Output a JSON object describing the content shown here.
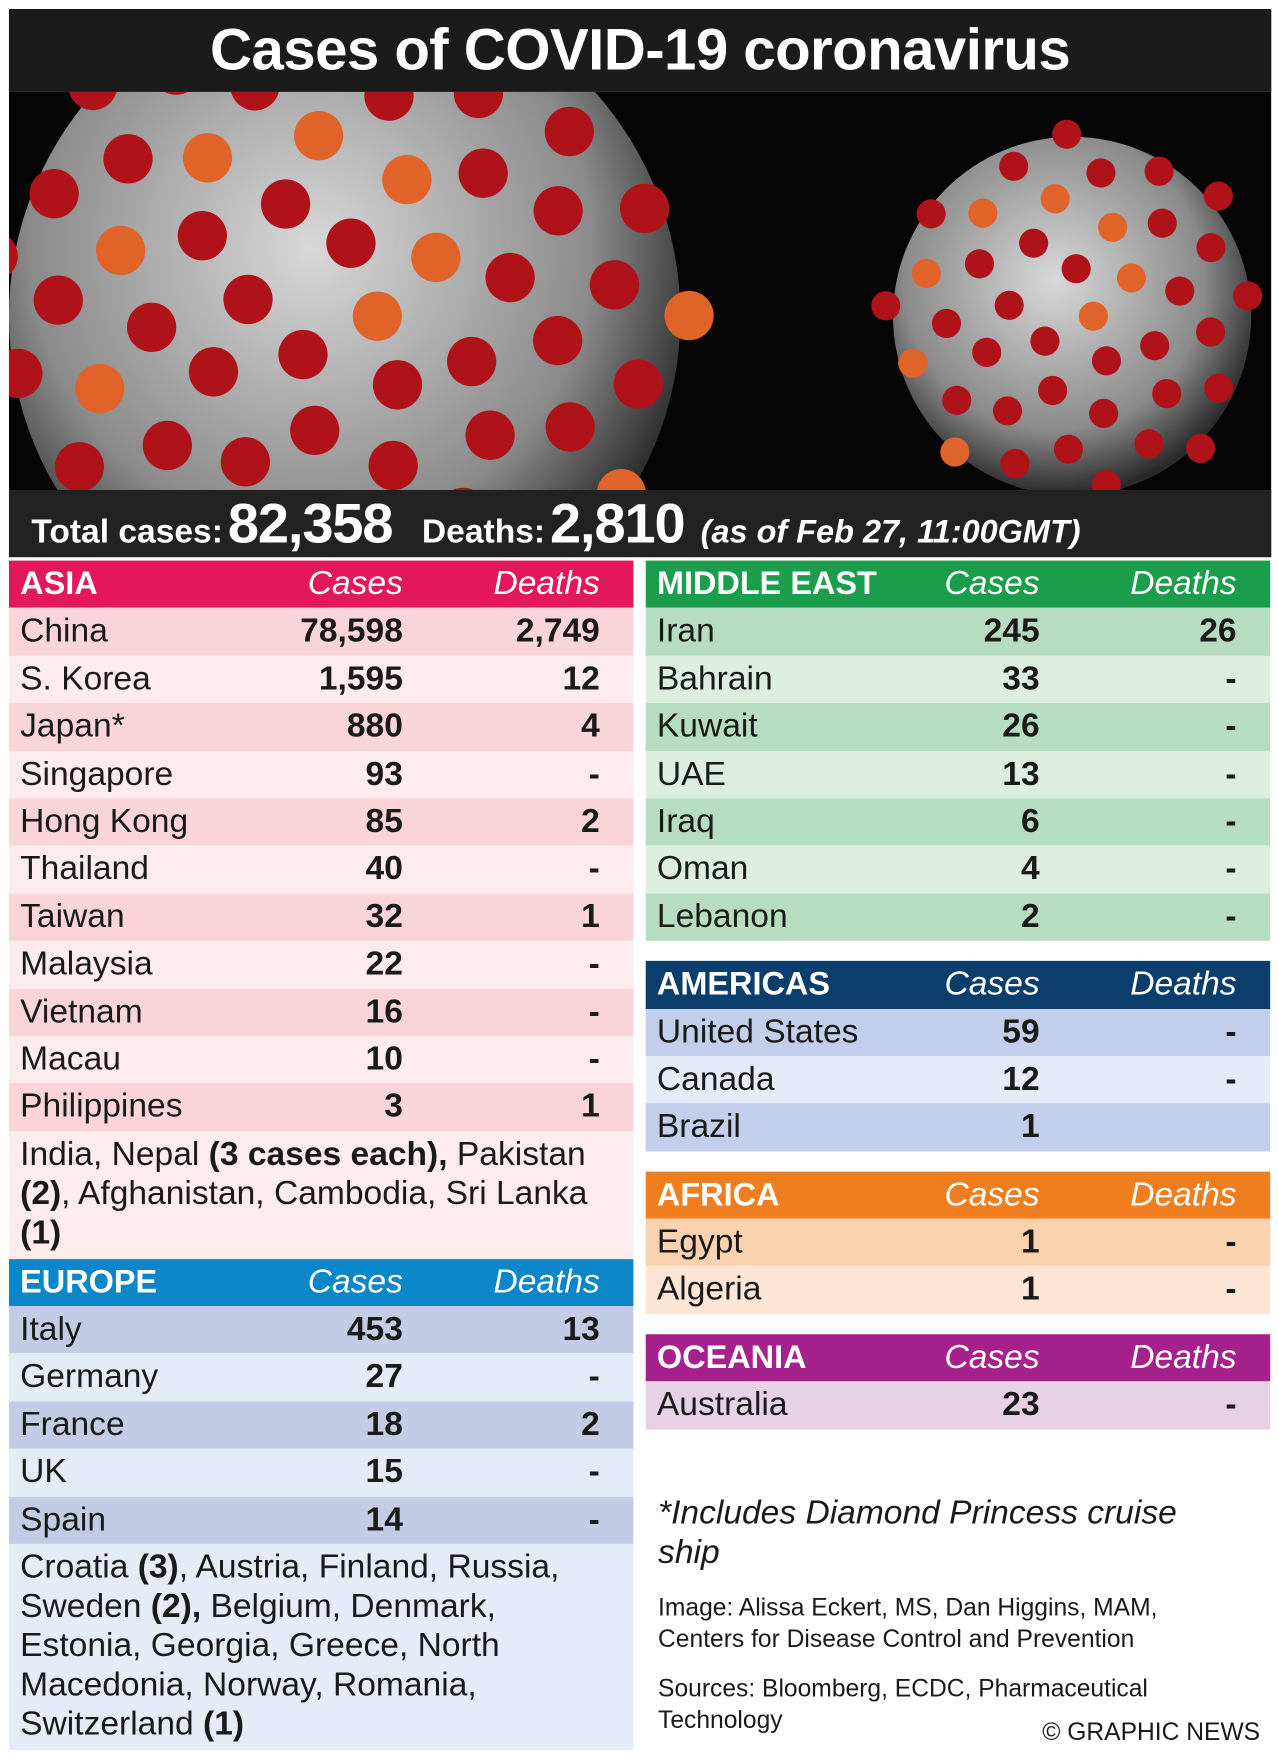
{
  "header": {
    "title": "Cases of COVID-19 coronavirus"
  },
  "totals": {
    "cases_label": "Total cases:",
    "cases": "82,358",
    "deaths_label": "Deaths:",
    "deaths": "2,810",
    "as_of": "(as of Feb 27, 11:00GMT)"
  },
  "left_column": [
    {
      "name": "ASIA",
      "cases_header": "Cases",
      "deaths_header": "Deaths",
      "color": "#e3175b",
      "row_colors": [
        "#f9d5da",
        "#fdebee"
      ],
      "rows": [
        [
          "China",
          "78,598",
          "2,749"
        ],
        [
          "S. Korea",
          "1,595",
          "12"
        ],
        [
          "Japan*",
          "880",
          "4"
        ],
        [
          "Singapore",
          "93",
          "-"
        ],
        [
          "Hong Kong",
          "85",
          "2"
        ],
        [
          "Thailand",
          "40",
          "-"
        ],
        [
          "Taiwan",
          "32",
          "1"
        ],
        [
          "Malaysia",
          "22",
          "-"
        ],
        [
          "Vietnam",
          "16",
          "-"
        ],
        [
          "Macau",
          "10",
          "-"
        ],
        [
          "Philippines",
          "3",
          "1"
        ]
      ],
      "note": [
        {
          "text": "India, Nepal ",
          "bold": false
        },
        {
          "text": "(3 cases each),",
          "bold": true
        },
        {
          "text": " Pakistan ",
          "bold": false
        },
        {
          "text": "(2)",
          "bold": true
        },
        {
          "text": ", Afghanistan, Cambodia, Sri Lanka ",
          "bold": false
        },
        {
          "text": "(1)",
          "bold": true
        }
      ]
    },
    {
      "name": "EUROPE",
      "cases_header": "Cases",
      "deaths_header": "Deaths",
      "color": "#0a86c9",
      "row_colors": [
        "#c4cbe5",
        "#e5ebf7"
      ],
      "rows": [
        [
          "Italy",
          "453",
          "13"
        ],
        [
          "Germany",
          "27",
          "-"
        ],
        [
          "France",
          "18",
          "2"
        ],
        [
          "UK",
          "15",
          "-"
        ],
        [
          "Spain",
          "14",
          "-"
        ]
      ],
      "note": [
        {
          "text": "Croatia ",
          "bold": false
        },
        {
          "text": "(3)",
          "bold": true
        },
        {
          "text": ", Austria, Finland, Russia, Sweden ",
          "bold": false
        },
        {
          "text": "(2),",
          "bold": true
        },
        {
          "text": " Belgium, Denmark, Estonia, Georgia, Greece, North Macedonia, Norway, Romania, Switzerland ",
          "bold": false
        },
        {
          "text": "(1)",
          "bold": true
        }
      ]
    }
  ],
  "right_column": [
    {
      "name": "MIDDLE EAST",
      "cases_header": "Cases",
      "deaths_header": "Deaths",
      "color": "#1c9d4b",
      "row_colors": [
        "#b6ddbf",
        "#dbeee0"
      ],
      "rows": [
        [
          "Iran",
          "245",
          "26"
        ],
        [
          "Bahrain",
          "33",
          "-"
        ],
        [
          "Kuwait",
          "26",
          "-"
        ],
        [
          "UAE",
          "13",
          "-"
        ],
        [
          "Iraq",
          "6",
          "-"
        ],
        [
          "Oman",
          "4",
          "-"
        ],
        [
          "Lebanon",
          "2",
          "-"
        ]
      ]
    },
    {
      "name": "AMERICAS",
      "cases_header": "Cases",
      "deaths_header": "Deaths",
      "color": "#0b3e6c",
      "row_colors": [
        "#c1cfea",
        "#e5ecf8"
      ],
      "rows": [
        [
          "United States",
          "59",
          "-"
        ],
        [
          "Canada",
          "12",
          "-"
        ],
        [
          "Brazil",
          "1",
          null
        ]
      ]
    },
    {
      "name": "AFRICA",
      "cases_header": "Cases",
      "deaths_header": "Deaths",
      "color": "#f07e1e",
      "row_colors": [
        "#fbd2b0",
        "#fde6d5"
      ],
      "rows": [
        [
          "Egypt",
          "1",
          "-"
        ],
        [
          "Algeria",
          "1",
          "-"
        ]
      ]
    },
    {
      "name": "OCEANIA",
      "cases_header": "Cases",
      "deaths_header": "Deaths",
      "color": "#a5218b",
      "row_colors": [
        "#e8d1e5",
        "#f5e9f3"
      ],
      "rows": [
        [
          "Australia",
          "23",
          "-"
        ]
      ]
    }
  ],
  "footnote": "*Includes Diamond Princess cruise ship",
  "credit": "Image: Alissa Eckert, MS, Dan Higgins, MAM, Centers for Disease Control and Prevention",
  "sources": "Sources: Bloomberg, ECDC, Pharmaceutical Technology",
  "copyright": "© GRAPHIC NEWS"
}
